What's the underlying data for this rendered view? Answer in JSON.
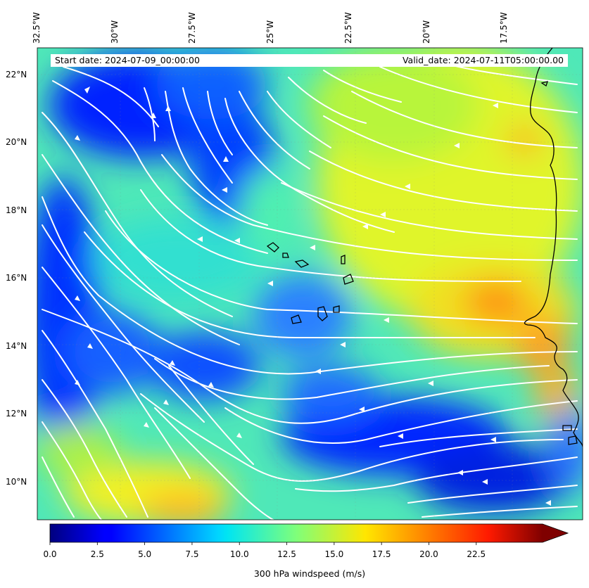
{
  "header": {
    "start_date": "Start date: 2024-07-09_00:00:00",
    "valid_date": "Valid_date: 2024-07-11T05:00:00.00"
  },
  "axes": {
    "longitude_labels": [
      "32.5°W",
      "30°W",
      "27.5°W",
      "25°W",
      "22.5°W",
      "20°W",
      "17.5°W"
    ],
    "longitude_values": [
      -32.5,
      -30,
      -27.5,
      -25,
      -22.5,
      -20,
      -17.5
    ],
    "latitude_labels": [
      "22°N",
      "20°N",
      "18°N",
      "16°N",
      "14°N",
      "12°N",
      "10°N"
    ],
    "latitude_values": [
      22,
      20,
      18,
      16,
      14,
      12,
      10
    ],
    "lon_range": [
      -32.5,
      -15.0
    ],
    "lat_range": [
      8.9,
      22.8
    ]
  },
  "colorbar": {
    "label": "300 hPa windspeed (m/s)",
    "tick_labels": [
      "0.0",
      "2.5",
      "5.0",
      "7.5",
      "10.0",
      "12.5",
      "15.0",
      "17.5",
      "20.0",
      "22.5"
    ],
    "tick_values": [
      0,
      2.5,
      5,
      7.5,
      10,
      12.5,
      15,
      17.5,
      20,
      22.5
    ],
    "range": [
      0,
      26
    ],
    "colormap": "jet",
    "extend": "max"
  },
  "field": {
    "variable": "300 hPa windspeed",
    "units": "m/s"
  },
  "colors": {
    "coastline": "#000000",
    "streamlines": "#ffffff"
  }
}
